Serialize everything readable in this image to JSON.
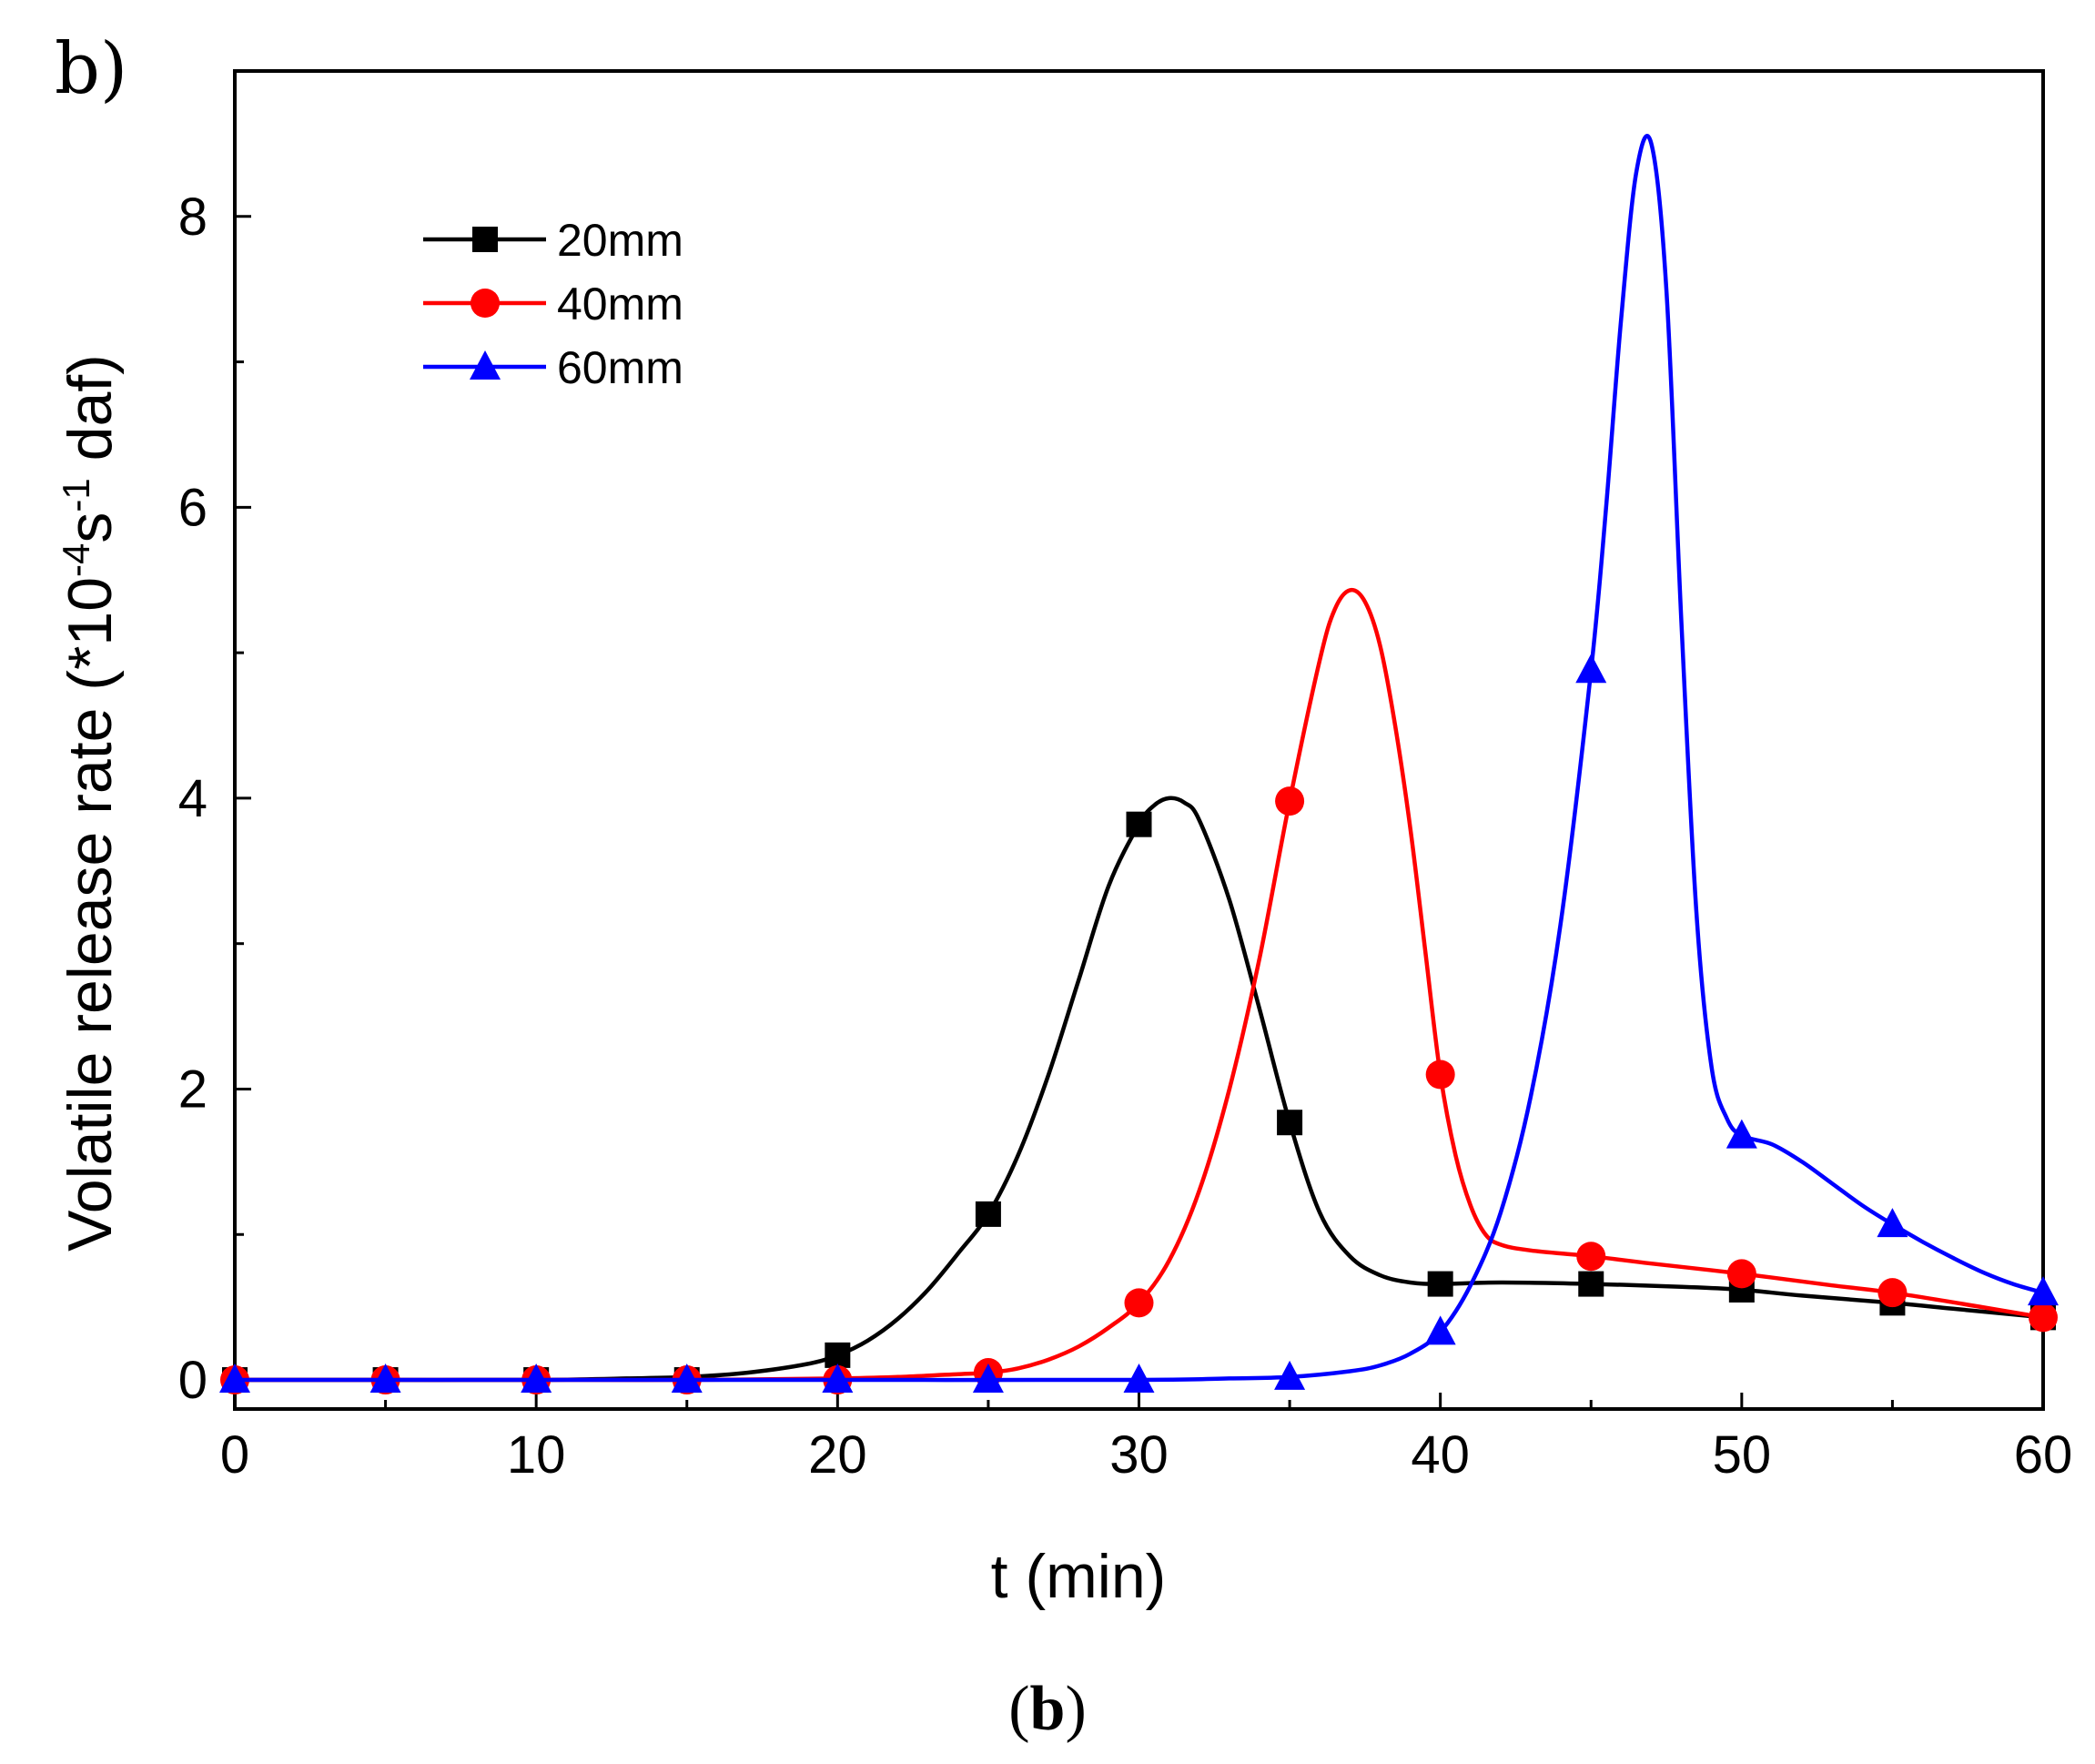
{
  "panel_label": "b)",
  "caption": {
    "open": "(",
    "letter": "b",
    "close": ")"
  },
  "chart_data": {
    "type": "line",
    "title": "",
    "xlabel": "t (min)",
    "ylabel": {
      "prefix": "Volatile release rate (*10",
      "exp1": "-4",
      "mid": "s",
      "exp2": "-1",
      "suffix": " daf)"
    },
    "xlim": [
      0,
      60
    ],
    "ylim": [
      -0.2,
      9.0
    ],
    "xticks": [
      0,
      10,
      20,
      30,
      40,
      50,
      60
    ],
    "yticks": [
      0,
      2,
      4,
      6,
      8
    ],
    "legend_position": "top-left",
    "series": [
      {
        "name": "20mm",
        "color": "#000000",
        "marker": "square",
        "points": [
          [
            0,
            0
          ],
          [
            5,
            0
          ],
          [
            10,
            0
          ],
          [
            15,
            0
          ],
          [
            20,
            0.17
          ],
          [
            25,
            1.14
          ],
          [
            30,
            3.82
          ],
          [
            35,
            1.77
          ],
          [
            40,
            0.66
          ],
          [
            45,
            0.66
          ],
          [
            50,
            0.62
          ],
          [
            55,
            0.53
          ],
          [
            60,
            0.43
          ]
        ],
        "curve": [
          [
            0,
            0
          ],
          [
            5,
            0
          ],
          [
            10,
            0
          ],
          [
            13,
            0.01
          ],
          [
            15,
            0.02
          ],
          [
            17,
            0.05
          ],
          [
            19,
            0.11
          ],
          [
            20,
            0.17
          ],
          [
            21,
            0.27
          ],
          [
            22,
            0.42
          ],
          [
            23,
            0.62
          ],
          [
            24,
            0.87
          ],
          [
            25,
            1.14
          ],
          [
            26,
            1.55
          ],
          [
            27,
            2.1
          ],
          [
            28,
            2.75
          ],
          [
            29,
            3.4
          ],
          [
            30,
            3.82
          ],
          [
            30.5,
            3.95
          ],
          [
            31,
            4.0
          ],
          [
            31.5,
            3.97
          ],
          [
            32,
            3.85
          ],
          [
            33,
            3.3
          ],
          [
            34,
            2.55
          ],
          [
            35,
            1.77
          ],
          [
            36,
            1.15
          ],
          [
            37,
            0.85
          ],
          [
            38,
            0.72
          ],
          [
            39,
            0.67
          ],
          [
            40,
            0.66
          ],
          [
            42,
            0.67
          ],
          [
            45,
            0.66
          ],
          [
            48,
            0.64
          ],
          [
            50,
            0.62
          ],
          [
            52,
            0.58
          ],
          [
            55,
            0.53
          ],
          [
            57,
            0.49
          ],
          [
            60,
            0.43
          ]
        ]
      },
      {
        "name": "40mm",
        "color": "#ff0000",
        "marker": "circle",
        "points": [
          [
            0,
            0
          ],
          [
            5,
            0
          ],
          [
            10,
            0
          ],
          [
            15,
            0
          ],
          [
            20,
            0
          ],
          [
            25,
            0.05
          ],
          [
            30,
            0.53
          ],
          [
            35,
            3.98
          ],
          [
            40,
            2.1
          ],
          [
            45,
            0.85
          ],
          [
            50,
            0.73
          ],
          [
            55,
            0.6
          ],
          [
            60,
            0.43
          ]
        ],
        "curve": [
          [
            0,
            0
          ],
          [
            10,
            0
          ],
          [
            15,
            0
          ],
          [
            20,
            0.01
          ],
          [
            22,
            0.02
          ],
          [
            24,
            0.04
          ],
          [
            25,
            0.05
          ],
          [
            26,
            0.08
          ],
          [
            27,
            0.14
          ],
          [
            28,
            0.23
          ],
          [
            29,
            0.36
          ],
          [
            30,
            0.53
          ],
          [
            31,
            0.82
          ],
          [
            32,
            1.3
          ],
          [
            33,
            2.0
          ],
          [
            34,
            2.9
          ],
          [
            35,
            3.98
          ],
          [
            36,
            4.95
          ],
          [
            36.5,
            5.3
          ],
          [
            37,
            5.43
          ],
          [
            37.5,
            5.35
          ],
          [
            38,
            5.05
          ],
          [
            38.5,
            4.5
          ],
          [
            39,
            3.8
          ],
          [
            39.5,
            2.95
          ],
          [
            40,
            2.1
          ],
          [
            40.5,
            1.55
          ],
          [
            41,
            1.2
          ],
          [
            41.5,
            1.0
          ],
          [
            42,
            0.93
          ],
          [
            43,
            0.89
          ],
          [
            45,
            0.85
          ],
          [
            47,
            0.8
          ],
          [
            50,
            0.73
          ],
          [
            53,
            0.65
          ],
          [
            55,
            0.6
          ],
          [
            58,
            0.5
          ],
          [
            60,
            0.43
          ]
        ]
      },
      {
        "name": "60mm",
        "color": "#0000ff",
        "marker": "triangle",
        "points": [
          [
            0,
            0
          ],
          [
            5,
            0
          ],
          [
            10,
            0
          ],
          [
            15,
            0
          ],
          [
            20,
            0
          ],
          [
            25,
            0
          ],
          [
            30,
            0
          ],
          [
            35,
            0.02
          ],
          [
            40,
            0.33
          ],
          [
            45,
            4.88
          ],
          [
            50,
            1.68
          ],
          [
            55,
            1.07
          ],
          [
            60,
            0.6
          ]
        ],
        "curve": [
          [
            0,
            0
          ],
          [
            10,
            0
          ],
          [
            20,
            0
          ],
          [
            30,
            0
          ],
          [
            33,
            0.01
          ],
          [
            35,
            0.02
          ],
          [
            37,
            0.06
          ],
          [
            38,
            0.1
          ],
          [
            39,
            0.18
          ],
          [
            40,
            0.33
          ],
          [
            41,
            0.65
          ],
          [
            42,
            1.15
          ],
          [
            43,
            1.95
          ],
          [
            44,
            3.15
          ],
          [
            45,
            4.88
          ],
          [
            45.5,
            6.0
          ],
          [
            46,
            7.3
          ],
          [
            46.5,
            8.3
          ],
          [
            47,
            8.5
          ],
          [
            47.5,
            7.5
          ],
          [
            48,
            5.2
          ],
          [
            48.5,
            3.2
          ],
          [
            49,
            2.15
          ],
          [
            49.5,
            1.8
          ],
          [
            50,
            1.68
          ],
          [
            51,
            1.62
          ],
          [
            52,
            1.5
          ],
          [
            53,
            1.35
          ],
          [
            54,
            1.2
          ],
          [
            55,
            1.07
          ],
          [
            56,
            0.95
          ],
          [
            57,
            0.84
          ],
          [
            58,
            0.74
          ],
          [
            59,
            0.66
          ],
          [
            60,
            0.6
          ]
        ]
      }
    ]
  }
}
